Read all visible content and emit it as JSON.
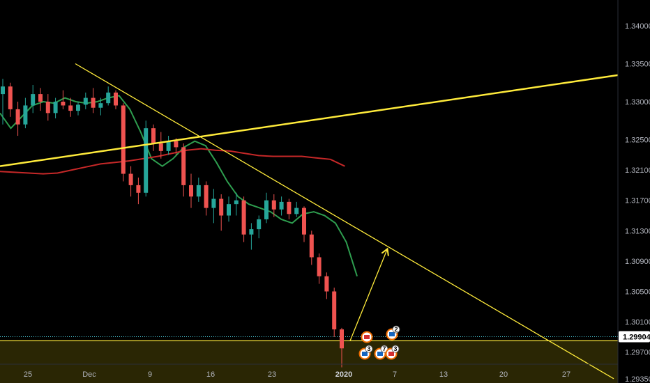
{
  "colors": {
    "background": "#000000",
    "candle_up": "#26a69a",
    "candle_down": "#ef5350",
    "trendline": "#ffeb3b",
    "ma_fast": "#2e9e4f",
    "ma_slow": "#c62828",
    "zone_fill": "#2a2604",
    "price_line": "#4dd0e1",
    "axis_text": "#b2b5be",
    "price_badge": "#ffffff"
  },
  "chart_data": {
    "type": "candlestick",
    "title": "",
    "xlabel": "",
    "ylabel": "",
    "x_ticks": [
      "25",
      "Dec",
      "9",
      "16",
      "23",
      "2020",
      "7",
      "13",
      "20",
      "27"
    ],
    "y_ticks": [
      "1.34000",
      "1.33500",
      "1.33000",
      "1.32500",
      "1.32100",
      "1.31700",
      "1.31300",
      "1.30900",
      "1.30500",
      "1.30100",
      "1.29700",
      "1.29350"
    ],
    "ylim": [
      1.292,
      1.345
    ],
    "current_price": "1.29904",
    "support_zone": [
      1.292,
      1.2985
    ],
    "series": [
      {
        "name": "",
        "kind": "ma_fast",
        "values": [
          1.3285,
          1.3265,
          1.328,
          1.3295,
          1.33,
          1.3298,
          1.3305,
          1.33,
          1.3298,
          1.33,
          1.3305,
          1.3308,
          1.329,
          1.326,
          1.3225,
          1.3215,
          1.3225,
          1.324,
          1.3248,
          1.3242,
          1.322,
          1.3195,
          1.3175,
          1.3165,
          1.316,
          1.3155,
          1.3145,
          1.314,
          1.3152,
          1.3155,
          1.315,
          1.314,
          1.3115,
          1.307
        ]
      },
      {
        "name": "",
        "kind": "ma_slow",
        "values": [
          1.3208,
          1.3207,
          1.3206,
          1.3205,
          1.3206,
          1.321,
          1.3214,
          1.3218,
          1.322,
          1.3222,
          1.3225,
          1.3228,
          1.3232,
          1.3236,
          1.3238,
          1.3236,
          1.3235,
          1.3232,
          1.3229,
          1.3228,
          1.3228,
          1.3228,
          1.3226,
          1.3224,
          1.3215
        ]
      }
    ],
    "candles": [
      [
        1.331,
        1.333,
        1.327,
        1.332
      ],
      [
        1.332,
        1.3325,
        1.328,
        1.329
      ],
      [
        1.329,
        1.33,
        1.3255,
        1.327
      ],
      [
        1.327,
        1.3305,
        1.3265,
        1.3295
      ],
      [
        1.3295,
        1.3322,
        1.3285,
        1.331
      ],
      [
        1.331,
        1.3318,
        1.3288,
        1.33
      ],
      [
        1.33,
        1.331,
        1.3275,
        1.3285
      ],
      [
        1.3285,
        1.3305,
        1.3278,
        1.33
      ],
      [
        1.33,
        1.3315,
        1.329,
        1.3295
      ],
      [
        1.3295,
        1.3305,
        1.328,
        1.3288
      ],
      [
        1.3288,
        1.33,
        1.3282,
        1.3296
      ],
      [
        1.3296,
        1.3312,
        1.329,
        1.3305
      ],
      [
        1.3305,
        1.3318,
        1.3285,
        1.3292
      ],
      [
        1.3292,
        1.3305,
        1.3282,
        1.3298
      ],
      [
        1.3298,
        1.332,
        1.3295,
        1.3312
      ],
      [
        1.3312,
        1.3315,
        1.329,
        1.3295
      ],
      [
        1.3295,
        1.3298,
        1.3195,
        1.3205
      ],
      [
        1.3205,
        1.3215,
        1.3175,
        1.319
      ],
      [
        1.319,
        1.32,
        1.3165,
        1.318
      ],
      [
        1.318,
        1.3275,
        1.3175,
        1.3265
      ],
      [
        1.3265,
        1.327,
        1.3235,
        1.3245
      ],
      [
        1.3245,
        1.326,
        1.3225,
        1.3235
      ],
      [
        1.3235,
        1.3255,
        1.323,
        1.3248
      ],
      [
        1.3248,
        1.3252,
        1.323,
        1.324
      ],
      [
        1.324,
        1.3245,
        1.3175,
        1.319
      ],
      [
        1.319,
        1.3205,
        1.316,
        1.3175
      ],
      [
        1.3175,
        1.32,
        1.3168,
        1.319
      ],
      [
        1.319,
        1.3195,
        1.315,
        1.316
      ],
      [
        1.316,
        1.3185,
        1.314,
        1.3172
      ],
      [
        1.3172,
        1.3178,
        1.313,
        1.315
      ],
      [
        1.315,
        1.3175,
        1.3142,
        1.3165
      ],
      [
        1.3165,
        1.318,
        1.315,
        1.317
      ],
      [
        1.317,
        1.3175,
        1.3115,
        1.3125
      ],
      [
        1.3125,
        1.314,
        1.3105,
        1.3132
      ],
      [
        1.3132,
        1.315,
        1.312,
        1.3145
      ],
      [
        1.3145,
        1.318,
        1.314,
        1.317
      ],
      [
        1.317,
        1.3178,
        1.3148,
        1.3158
      ],
      [
        1.3158,
        1.3175,
        1.315,
        1.3168
      ],
      [
        1.3168,
        1.3172,
        1.3145,
        1.3152
      ],
      [
        1.3152,
        1.3168,
        1.3148,
        1.316
      ],
      [
        1.316,
        1.3162,
        1.3115,
        1.3125
      ],
      [
        1.3125,
        1.313,
        1.3085,
        1.3095
      ],
      [
        1.3095,
        1.31,
        1.306,
        1.307
      ],
      [
        1.307,
        1.3075,
        1.304,
        1.305
      ],
      [
        1.305,
        1.3055,
        1.299,
        1.3
      ],
      [
        1.3,
        1.3002,
        1.295,
        1.2975
      ]
    ],
    "trendlines": [
      {
        "from": [
          "Nov 15",
          1.3215
        ],
        "to": [
          "Jan 31",
          1.3335
        ]
      },
      {
        "from": [
          "Nov 28",
          1.335
        ],
        "to": [
          "Jan 29",
          1.2935
        ]
      },
      {
        "from": [
          "Jan 01",
          1.2985
        ],
        "to": [
          "Jan 05",
          1.3105
        ],
        "arrow": true
      }
    ],
    "events": [
      {
        "label": "",
        "flag": "CA"
      },
      {
        "label": "2",
        "flag": "US"
      },
      {
        "label": "3",
        "flag": "US"
      },
      {
        "label": "7",
        "flag": "US"
      },
      {
        "label": "3",
        "flag": "CA"
      }
    ]
  }
}
